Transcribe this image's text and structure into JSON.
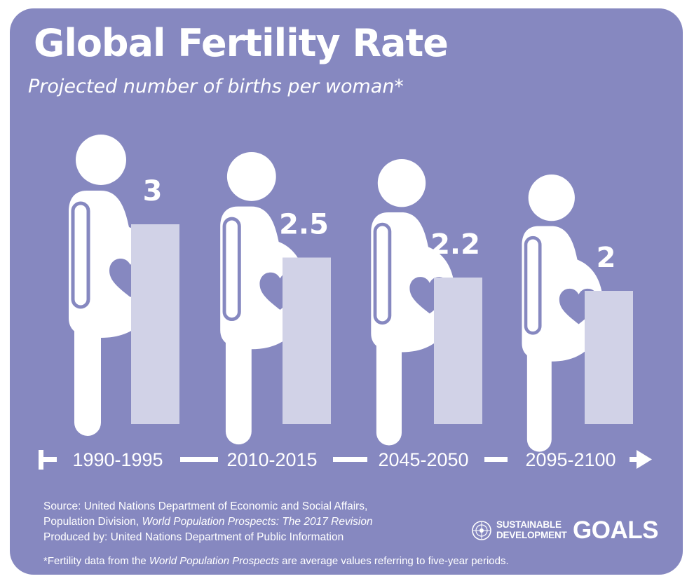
{
  "title": "Global Fertility Rate",
  "subtitle": "Projected number of births per woman*",
  "chart_data": {
    "type": "bar",
    "categories": [
      "1990-1995",
      "2010-2015",
      "2045-2050",
      "2095-2100"
    ],
    "values": [
      3,
      2.5,
      2.2,
      2
    ],
    "value_labels": [
      "3",
      "2.5",
      "2.2",
      "2"
    ],
    "title": "Global Fertility Rate",
    "subtitle": "Projected number of births per woman*",
    "bar_color": "#d1d2e7",
    "background": "#8688c0",
    "figure_color": "#ffffff",
    "accent": "#8688c0",
    "icon": "pregnant-woman-icon"
  },
  "source": {
    "line1": "Source: United Nations Department of Economic and Social Affairs,",
    "line2_prefix": "Population Division, ",
    "line2_italic": "World Population Prospects: The 2017 Revision",
    "line3": "Produced by: United Nations Department of Public Information"
  },
  "footnote": {
    "prefix": "*Fertility data from the ",
    "italic": "World Population Prospects",
    "suffix": " are average values referring to five-year periods."
  },
  "logo": {
    "line1": "SUSTAINABLE",
    "line2": "DEVELOPMENT",
    "goals": "GOALS",
    "icon": "un-emblem-icon"
  }
}
